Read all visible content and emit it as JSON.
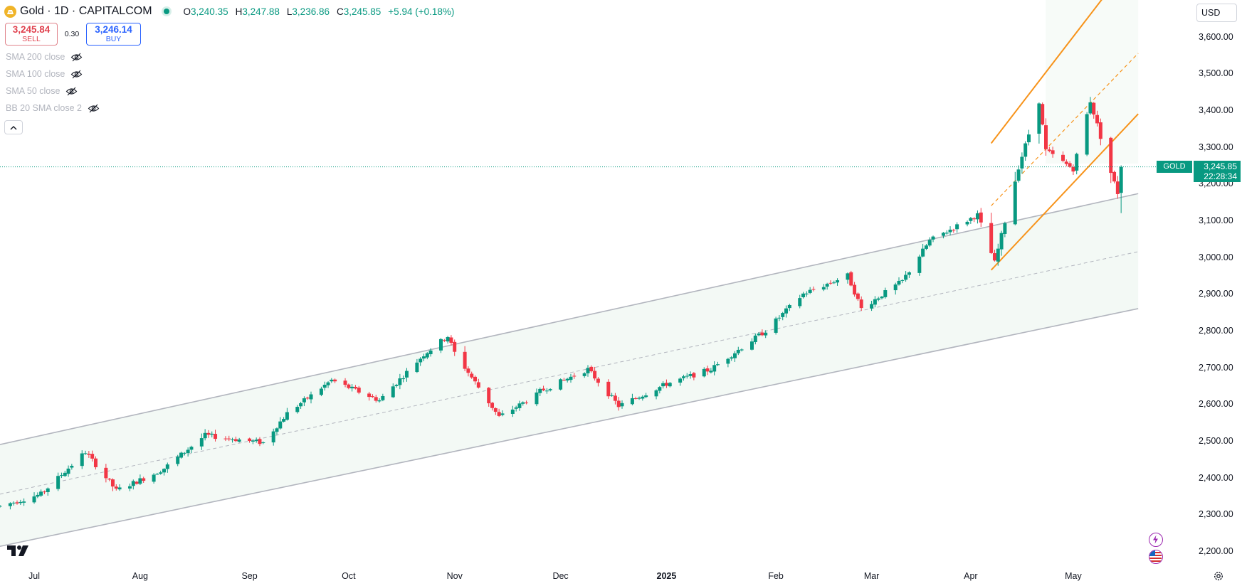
{
  "header": {
    "symbol_title": "Gold · 1D · CAPITALCOM",
    "open_label": "O",
    "open_value": "3,240.35",
    "high_label": "H",
    "high_value": "3,247.88",
    "low_label": "L",
    "low_value": "3,236.86",
    "close_label": "C",
    "close_value": "3,245.85",
    "change": "+5.94 (+0.18%)"
  },
  "trade": {
    "sell_price": "3,245.84",
    "sell_label": "SELL",
    "spread": "0.30",
    "buy_price": "3,246.14",
    "buy_label": "BUY"
  },
  "indicators": [
    {
      "label": "SMA 200 close",
      "icon": "eye-crossed-icon"
    },
    {
      "label": "SMA 100 close",
      "icon": "eye-crossed-icon"
    },
    {
      "label": "SMA 50 close",
      "icon": "eye-crossed-icon"
    },
    {
      "label": "BB 20 SMA close 2",
      "icon": "eye-crossed-icon"
    }
  ],
  "currency": "USD",
  "last_price": {
    "symbol_tag": "GOLD",
    "price": "3,245.85",
    "countdown": "22:28:34"
  },
  "colors": {
    "up": "#089981",
    "down": "#f23645",
    "channel_line": "#b2b5be",
    "channel_fill": "#f3f9f5",
    "orange_channel": "#f7931a",
    "last_price_line": "#089981"
  },
  "chart_data": {
    "type": "candlestick",
    "timeframe": "1D",
    "y_ticks": [
      "3,600.00",
      "3,500.00",
      "3,400.00",
      "3,300.00",
      "3,200.00",
      "3,100.00",
      "3,000.00",
      "2,900.00",
      "2,800.00",
      "2,700.00",
      "2,600.00",
      "2,500.00",
      "2,400.00",
      "2,300.00",
      "2,200.00"
    ],
    "y_tick_values": [
      3600,
      3500,
      3400,
      3300,
      3200,
      3100,
      3000,
      2900,
      2800,
      2700,
      2600,
      2500,
      2400,
      2300,
      2200
    ],
    "ylim": [
      2165,
      3700
    ],
    "x_ticks": [
      "Jul",
      "Aug",
      "Sep",
      "Oct",
      "Nov",
      "Dec",
      "2025",
      "Feb",
      "Mar",
      "Apr",
      "May"
    ],
    "x_tick_dates": [
      "2024-07-01",
      "2024-08-01",
      "2024-09-02",
      "2024-10-01",
      "2024-11-01",
      "2024-12-02",
      "2025-01-02",
      "2025-02-03",
      "2025-03-03",
      "2025-04-01",
      "2025-05-01"
    ],
    "bold_x_ticks": [
      "2025"
    ],
    "x_range": [
      "2024-06-21",
      "2025-06-05"
    ],
    "close_path": [
      [
        "2024-06-21",
        2322
      ],
      [
        "2024-07-03",
        2355
      ],
      [
        "2024-07-16",
        2470
      ],
      [
        "2024-07-25",
        2365
      ],
      [
        "2024-08-05",
        2410
      ],
      [
        "2024-08-08",
        2425
      ],
      [
        "2024-08-20",
        2515
      ],
      [
        "2024-09-06",
        2495
      ],
      [
        "2024-09-13",
        2575
      ],
      [
        "2024-09-26",
        2665
      ],
      [
        "2024-10-10",
        2610
      ],
      [
        "2024-10-23",
        2735
      ],
      [
        "2024-10-30",
        2785
      ],
      [
        "2024-11-01",
        2740
      ],
      [
        "2024-11-14",
        2565
      ],
      [
        "2024-11-25",
        2625
      ],
      [
        "2024-11-26",
        2635
      ],
      [
        "2024-12-10",
        2695
      ],
      [
        "2024-12-19",
        2595
      ],
      [
        "2025-01-02",
        2655
      ],
      [
        "2025-01-15",
        2695
      ],
      [
        "2025-01-31",
        2800
      ],
      [
        "2025-02-11",
        2900
      ],
      [
        "2025-02-24",
        2950
      ],
      [
        "2025-02-28",
        2860
      ],
      [
        "2025-03-12",
        2935
      ],
      [
        "2025-03-20",
        3045
      ],
      [
        "2025-03-28",
        3085
      ],
      [
        "2025-04-03",
        3115
      ],
      [
        "2025-04-08",
        2985
      ],
      [
        "2025-04-15",
        3245
      ],
      [
        "2025-04-21",
        3425
      ],
      [
        "2025-04-23",
        3290
      ],
      [
        "2025-05-01",
        3240
      ],
      [
        "2025-05-06",
        3425
      ],
      [
        "2025-05-12",
        3230
      ],
      [
        "2025-05-14",
        3175
      ],
      [
        "2025-05-15",
        3245
      ]
    ],
    "last_bar": {
      "date": "2025-05-15",
      "open": 3240.35,
      "high": 3247.88,
      "low": 3236.86,
      "close": 3245.85
    },
    "channels": [
      {
        "name": "gray regression channel",
        "start": "2024-06-21",
        "end": "2025-05-20",
        "upper": [
          2490,
          3173
        ],
        "middle": [
          2355,
          3015
        ],
        "lower": [
          2213,
          2860
        ]
      },
      {
        "name": "orange rising channel",
        "start": "2025-04-07",
        "end": "2025-05-20",
        "upper": [
          3310,
          3830
        ],
        "middle": [
          3140,
          3555
        ],
        "lower": [
          2965,
          3390
        ]
      }
    ]
  }
}
